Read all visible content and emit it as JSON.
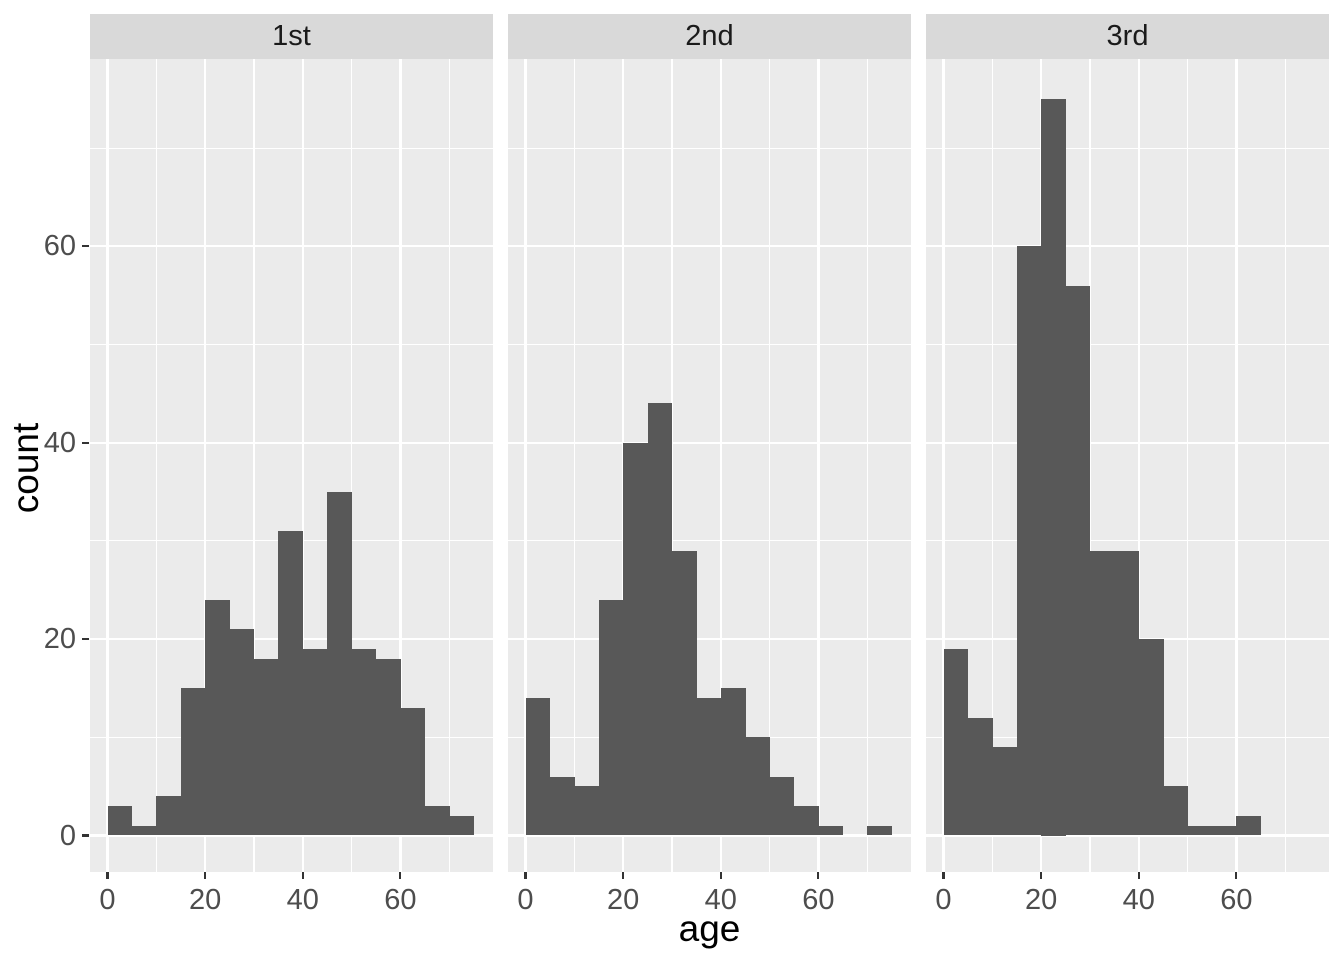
{
  "chart_data": {
    "type": "bar",
    "subtype": "faceted-histogram",
    "title": "",
    "xlabel": "age",
    "ylabel": "count",
    "legend": "none",
    "grid": true,
    "bins": {
      "start": 0,
      "width": 5
    },
    "x_ticks": [
      0,
      20,
      40,
      60
    ],
    "y_ticks": [
      0,
      20,
      40,
      60
    ],
    "xlim": [
      -3.75,
      78.75
    ],
    "ylim": [
      -3.75,
      78.75
    ],
    "facets": [
      {
        "label": "1st",
        "bin_starts": [
          0,
          5,
          10,
          15,
          20,
          25,
          30,
          35,
          40,
          45,
          50,
          55,
          60,
          65,
          70
        ],
        "counts": [
          3,
          1,
          4,
          15,
          24,
          21,
          18,
          31,
          19,
          35,
          19,
          18,
          13,
          3,
          2
        ]
      },
      {
        "label": "2nd",
        "bin_starts": [
          0,
          5,
          10,
          15,
          20,
          25,
          30,
          35,
          40,
          45,
          50,
          55,
          60,
          65,
          70
        ],
        "counts": [
          14,
          6,
          5,
          24,
          40,
          44,
          29,
          14,
          15,
          10,
          6,
          3,
          1,
          0,
          1
        ]
      },
      {
        "label": "3rd",
        "bin_starts": [
          0,
          5,
          10,
          15,
          20,
          25,
          30,
          35,
          40,
          45,
          50,
          55,
          60,
          65,
          70
        ],
        "counts": [
          19,
          12,
          9,
          60,
          75,
          56,
          29,
          29,
          20,
          5,
          1,
          1,
          2,
          0,
          0
        ]
      }
    ],
    "colors": {
      "bar_fill": "#585858",
      "panel_background": "#EBEBEB",
      "strip_background": "#D9D9D9",
      "gridline": "#FFFFFF",
      "tick_label_text": "#4D4D4D",
      "axis_title_text": "#000000",
      "strip_text": "#1A1A1A",
      "tick_mark": "#333333",
      "figure_background": "#FFFFFF"
    }
  }
}
